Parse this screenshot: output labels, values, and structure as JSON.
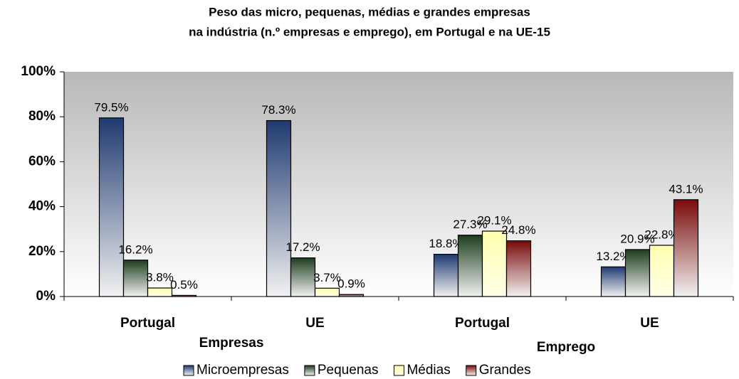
{
  "chart_data": {
    "type": "bar",
    "title_lines": [
      "Peso das micro, pequenas, médias e grandes empresas",
      "na indústria (n.º empresas e emprego), em Portugal e na UE-15"
    ],
    "categories": [
      "Portugal",
      "UE",
      "Portugal",
      "UE"
    ],
    "category_groups": [
      "Empresas",
      "Emprego"
    ],
    "series": [
      {
        "name": "Microempresas",
        "color": "#1f3a70",
        "values": [
          79.5,
          78.3,
          18.8,
          13.2
        ],
        "value_labels": [
          "79.5%",
          "78.3%",
          "18.8%",
          "13.2%"
        ]
      },
      {
        "name": "Pequenas",
        "color": "#1e3d1e",
        "values": [
          16.2,
          17.2,
          27.3,
          20.9
        ],
        "value_labels": [
          "16.2%",
          "17.2%",
          "27.3%",
          "20.9%"
        ]
      },
      {
        "name": "Médias",
        "color": "#ffffb0",
        "values": [
          3.8,
          3.7,
          29.1,
          22.8
        ],
        "value_labels": [
          "3.8%",
          "3.7%",
          "29.1%",
          "22.8%"
        ]
      },
      {
        "name": "Grandes",
        "color": "#7a0a0a",
        "values": [
          0.5,
          0.9,
          24.8,
          43.1
        ],
        "value_labels": [
          "0.5%",
          "0.9%",
          "24.8%",
          "43.1%"
        ]
      }
    ],
    "ylim": [
      0,
      100
    ],
    "yticks": [
      {
        "value": 0,
        "label": "0%"
      },
      {
        "value": 20,
        "label": "20%"
      },
      {
        "value": 40,
        "label": "40%"
      },
      {
        "value": 60,
        "label": "60%"
      },
      {
        "value": 80,
        "label": "80%"
      },
      {
        "value": 100,
        "label": "100%"
      }
    ],
    "legend": "bottom"
  }
}
